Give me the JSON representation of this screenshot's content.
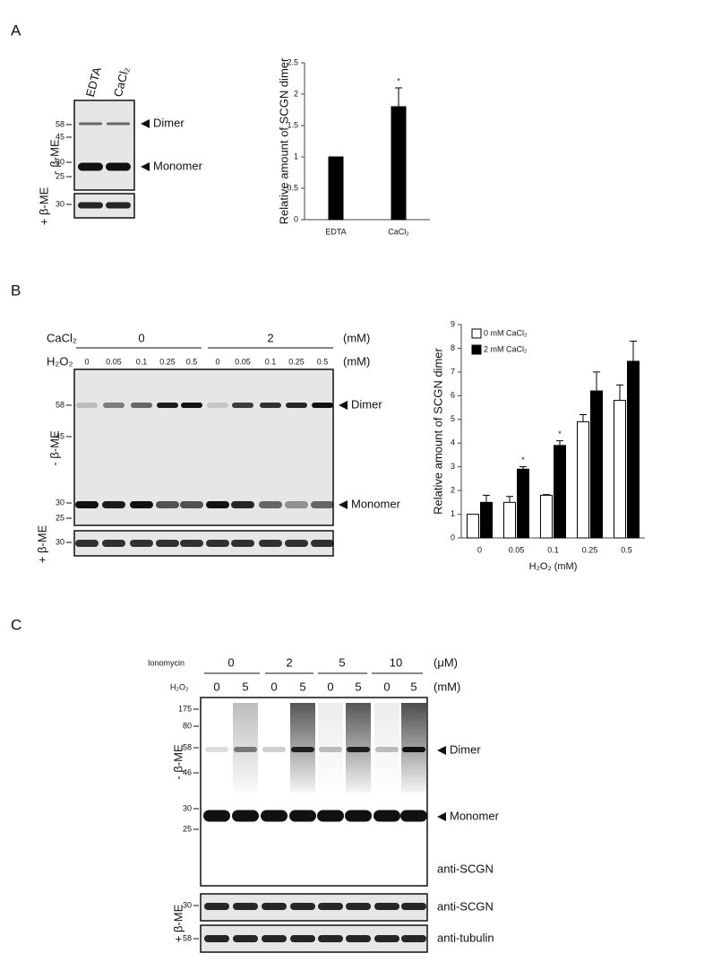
{
  "panel_labels": [
    "A",
    "B",
    "C"
  ],
  "chart_data": [
    {
      "type": "bar",
      "y_label": "Relative amount of SCGN dimer",
      "categories": [
        "EDTA",
        "CaCl₂"
      ],
      "series": [
        {
          "color": "#000000",
          "values": [
            1,
            1.8
          ],
          "errors": [
            null,
            0.3
          ],
          "significance": [
            null,
            "*"
          ]
        }
      ],
      "ylim": [
        0,
        2.5
      ],
      "yticks": [
        0,
        0.5,
        1,
        1.5,
        2,
        2.5
      ]
    },
    {
      "type": "bar",
      "y_label": "Relative amount of SCGN dimer",
      "x_label": "H₂O₂ (mM)",
      "categories": [
        "0",
        "0.05",
        "0.1",
        "0.25",
        "0.5"
      ],
      "series": [
        {
          "name": "0 mM CaCl₂",
          "color": "#ffffff",
          "values": [
            1,
            1.5,
            1.8,
            4.9,
            5.8
          ],
          "errors": [
            null,
            0.25,
            0.03,
            0.3,
            0.65
          ],
          "significance": [
            null,
            null,
            null,
            null,
            null
          ]
        },
        {
          "name": "2 mM CaCl₂",
          "color": "#000000",
          "values": [
            1.5,
            2.9,
            3.9,
            6.2,
            7.45
          ],
          "errors": [
            0.3,
            0.1,
            0.2,
            0.8,
            0.85
          ],
          "significance": [
            null,
            "*",
            "*",
            null,
            null
          ]
        }
      ],
      "ylim": [
        0,
        9
      ],
      "yticks": [
        0,
        1,
        2,
        3,
        4,
        5,
        6,
        7,
        8,
        9
      ],
      "legend": "top-left"
    }
  ],
  "blot_a": {
    "lanes": [
      "EDTA",
      "CaCl₂"
    ],
    "markers_minus": [
      58,
      45,
      30,
      25
    ],
    "markers_plus": [
      30
    ],
    "bands": [
      "Dimer",
      "Monomer"
    ],
    "minus_label": "- β-ME",
    "plus_label": "+ β-ME"
  },
  "blot_b": {
    "cacl2": {
      "label": "CaCl₂",
      "groups": [
        "0",
        "2"
      ],
      "unit": "(mM)"
    },
    "h2o2": {
      "label": "H₂O₂",
      "lanes": [
        "0",
        "0.05",
        "0.1",
        "0.25",
        "0.5",
        "0",
        "0.05",
        "0.1",
        "0.25",
        "0.5"
      ],
      "unit": "(mM)"
    },
    "markers_minus": [
      58,
      45,
      30,
      25
    ],
    "markers_plus": [
      30
    ],
    "bands": [
      "Dimer",
      "Monomer"
    ],
    "minus_label": "- β-ME",
    "plus_label": "+ β-ME"
  },
  "blot_c": {
    "ionomycin": {
      "label": "Ionomycin",
      "groups": [
        "0",
        "2",
        "5",
        "10"
      ],
      "unit": "(μM)"
    },
    "h2o2": {
      "label": "H₂O₂",
      "lanes": [
        "0",
        "5",
        "0",
        "5",
        "0",
        "5",
        "0",
        "5"
      ],
      "unit": "(mM)"
    },
    "markers_minus": [
      175,
      80,
      58,
      46,
      30,
      25
    ],
    "markers_scgn": [
      30
    ],
    "markers_tubulin": [
      58
    ],
    "bands": [
      "Dimer",
      "Monomer"
    ],
    "antibodies": [
      "anti-SCGN",
      "anti-SCGN",
      "anti-tubulin"
    ],
    "minus_label": "- β-ME",
    "plus_label": "+ β-ME"
  }
}
